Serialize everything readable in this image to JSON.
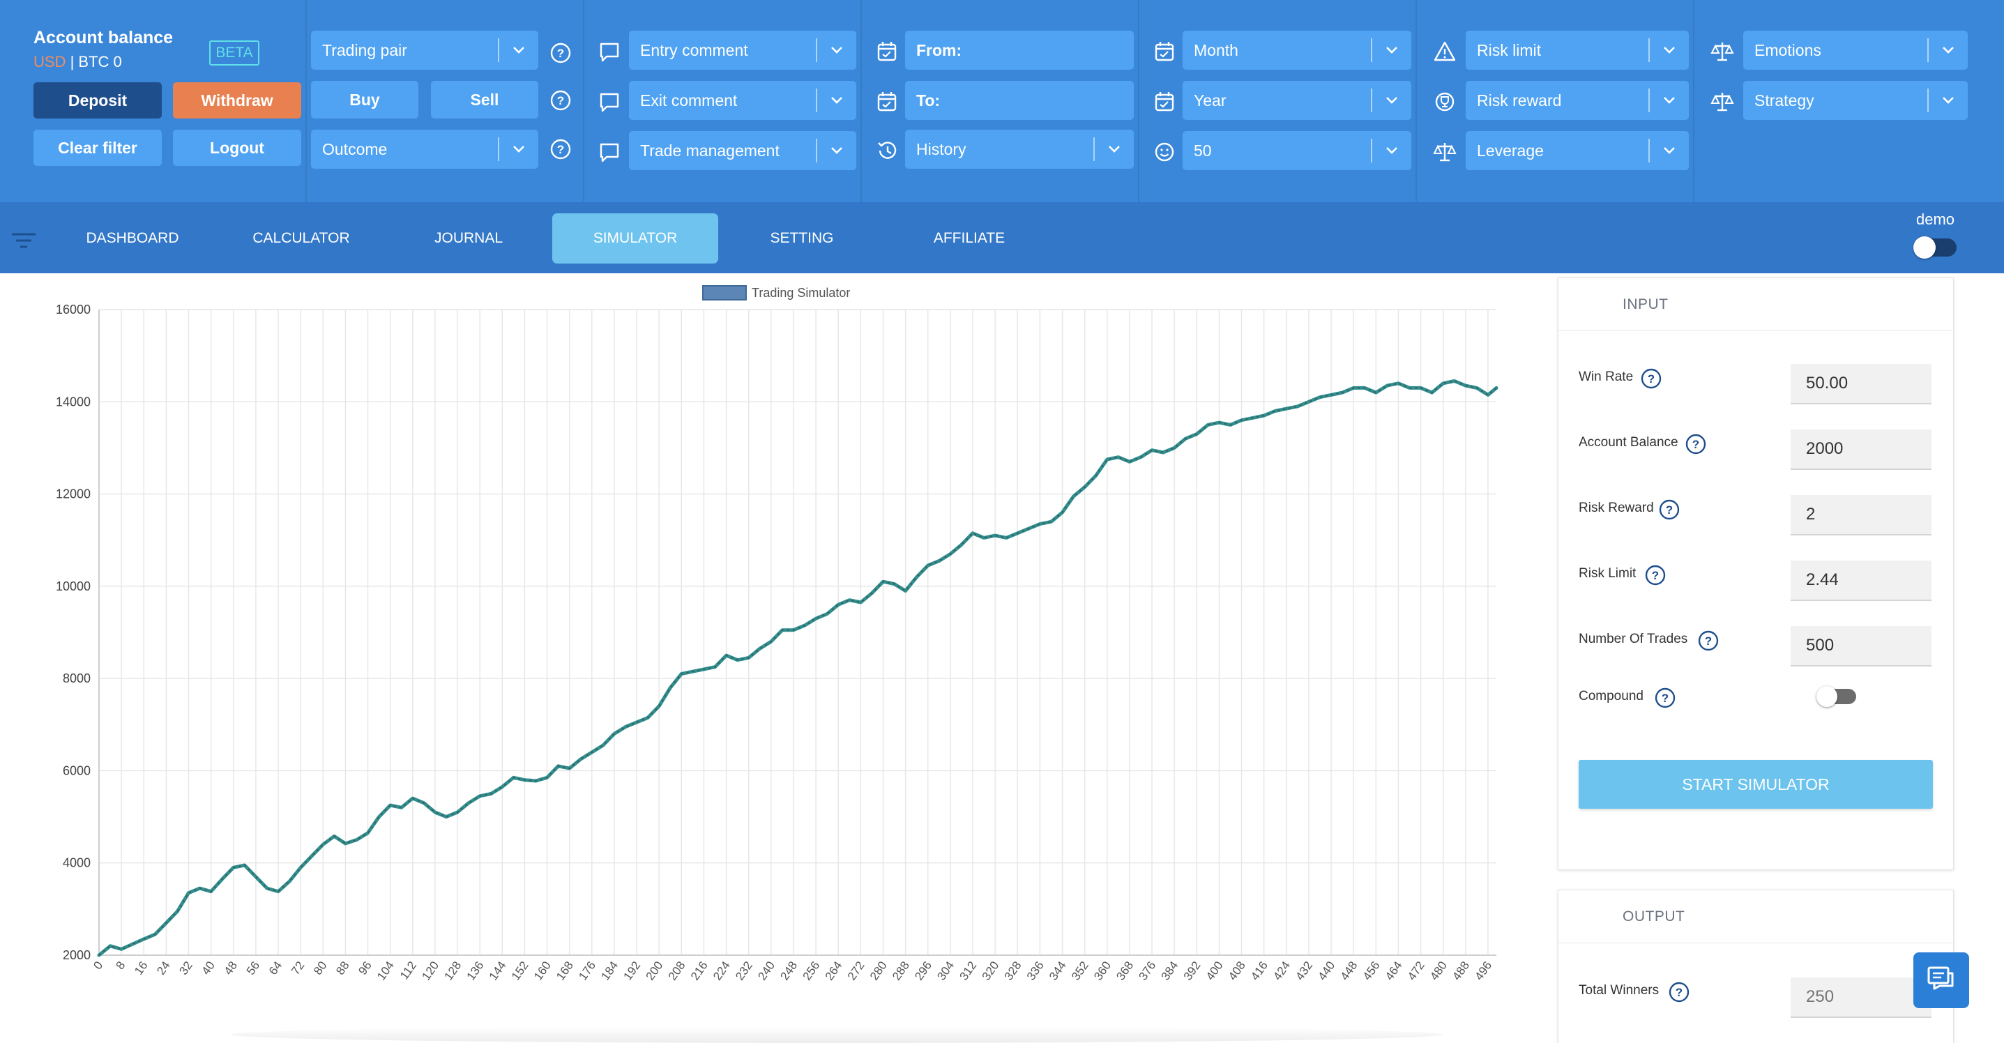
{
  "account": {
    "title": "Account balance",
    "currency_usd": "USD",
    "separator": "|",
    "currency_btc": "BTC",
    "btc_value": "0",
    "beta_badge": "BETA"
  },
  "buttons": {
    "deposit": "Deposit",
    "withdraw": "Withdraw",
    "clear_filter": "Clear filter",
    "logout": "Logout",
    "buy": "Buy",
    "sell": "Sell"
  },
  "filters": {
    "trading_pair": "Trading pair",
    "outcome": "Outcome",
    "entry_comment": "Entry comment",
    "exit_comment": "Exit comment",
    "trade_management": "Trade management",
    "from": "From:",
    "to": "To:",
    "history": "History",
    "month": "Month",
    "year": "Year",
    "count": "50",
    "risk_limit": "Risk limit",
    "risk_reward": "Risk reward",
    "leverage": "Leverage",
    "emotions": "Emotions",
    "strategy": "Strategy"
  },
  "nav": {
    "tabs": [
      {
        "label": "DASHBOARD"
      },
      {
        "label": "CALCULATOR"
      },
      {
        "label": "JOURNAL"
      },
      {
        "label": "SIMULATOR",
        "active": true
      },
      {
        "label": "SETTING"
      },
      {
        "label": "AFFILIATE"
      }
    ],
    "demo_label": "demo",
    "demo_on": false
  },
  "input_panel": {
    "title": "INPUT",
    "fields": [
      {
        "label": "Win Rate",
        "value": "50.00"
      },
      {
        "label": "Account Balance",
        "value": "2000"
      },
      {
        "label": "Risk Reward",
        "value": "2"
      },
      {
        "label": "Risk Limit",
        "value": "2.44"
      },
      {
        "label": "Number Of Trades",
        "value": "500"
      }
    ],
    "compound_label": "Compound",
    "compound_on": false,
    "start_button": "START SIMULATOR"
  },
  "output_panel": {
    "title": "OUTPUT",
    "fields": [
      {
        "label": "Total Winners",
        "placeholder": "250"
      }
    ]
  },
  "colors": {
    "topbar": "#3a87d9",
    "navbar": "#3378c8",
    "control": "#4fa3f2",
    "deposit": "#1e4e8c",
    "withdraw": "#e8804f",
    "active_tab": "#6ec3ef",
    "line": "#2f8f8f"
  },
  "chart_data": {
    "type": "line",
    "legend": "Trading Simulator",
    "legend_position": "top",
    "grid": true,
    "xlim": [
      0,
      499
    ],
    "ylim": [
      2000,
      16000
    ],
    "y_ticks": [
      2000,
      4000,
      6000,
      8000,
      10000,
      12000,
      14000,
      16000
    ],
    "x_tick_step": 8,
    "series": [
      {
        "name": "Trading Simulator",
        "anchors": [
          [
            0,
            2000
          ],
          [
            4,
            2200
          ],
          [
            8,
            2130
          ],
          [
            16,
            2350
          ],
          [
            20,
            2450
          ],
          [
            24,
            2700
          ],
          [
            28,
            2950
          ],
          [
            32,
            3350
          ],
          [
            36,
            3450
          ],
          [
            40,
            3380
          ],
          [
            44,
            3650
          ],
          [
            48,
            3900
          ],
          [
            52,
            3950
          ],
          [
            56,
            3700
          ],
          [
            60,
            3450
          ],
          [
            64,
            3380
          ],
          [
            68,
            3600
          ],
          [
            72,
            3900
          ],
          [
            76,
            4150
          ],
          [
            80,
            4400
          ],
          [
            84,
            4580
          ],
          [
            88,
            4420
          ],
          [
            92,
            4500
          ],
          [
            96,
            4650
          ],
          [
            100,
            5000
          ],
          [
            104,
            5250
          ],
          [
            108,
            5200
          ],
          [
            112,
            5400
          ],
          [
            116,
            5300
          ],
          [
            120,
            5100
          ],
          [
            124,
            5000
          ],
          [
            128,
            5100
          ],
          [
            132,
            5300
          ],
          [
            136,
            5450
          ],
          [
            140,
            5500
          ],
          [
            144,
            5650
          ],
          [
            148,
            5850
          ],
          [
            152,
            5800
          ],
          [
            156,
            5780
          ],
          [
            160,
            5850
          ],
          [
            164,
            6100
          ],
          [
            168,
            6050
          ],
          [
            172,
            6250
          ],
          [
            176,
            6400
          ],
          [
            180,
            6550
          ],
          [
            184,
            6800
          ],
          [
            188,
            6950
          ],
          [
            192,
            7050
          ],
          [
            196,
            7150
          ],
          [
            200,
            7400
          ],
          [
            204,
            7800
          ],
          [
            208,
            8100
          ],
          [
            212,
            8150
          ],
          [
            216,
            8200
          ],
          [
            220,
            8250
          ],
          [
            224,
            8500
          ],
          [
            228,
            8400
          ],
          [
            232,
            8450
          ],
          [
            236,
            8650
          ],
          [
            240,
            8800
          ],
          [
            244,
            9050
          ],
          [
            248,
            9050
          ],
          [
            252,
            9150
          ],
          [
            256,
            9300
          ],
          [
            260,
            9400
          ],
          [
            264,
            9600
          ],
          [
            268,
            9700
          ],
          [
            272,
            9650
          ],
          [
            276,
            9850
          ],
          [
            280,
            10100
          ],
          [
            284,
            10050
          ],
          [
            288,
            9900
          ],
          [
            292,
            10200
          ],
          [
            296,
            10450
          ],
          [
            300,
            10550
          ],
          [
            304,
            10700
          ],
          [
            308,
            10900
          ],
          [
            312,
            11150
          ],
          [
            316,
            11050
          ],
          [
            320,
            11100
          ],
          [
            324,
            11050
          ],
          [
            328,
            11150
          ],
          [
            332,
            11250
          ],
          [
            336,
            11350
          ],
          [
            340,
            11400
          ],
          [
            344,
            11600
          ],
          [
            348,
            11950
          ],
          [
            352,
            12150
          ],
          [
            356,
            12400
          ],
          [
            360,
            12750
          ],
          [
            364,
            12800
          ],
          [
            368,
            12700
          ],
          [
            372,
            12800
          ],
          [
            376,
            12950
          ],
          [
            380,
            12900
          ],
          [
            384,
            13000
          ],
          [
            388,
            13200
          ],
          [
            392,
            13300
          ],
          [
            396,
            13500
          ],
          [
            400,
            13550
          ],
          [
            404,
            13500
          ],
          [
            408,
            13600
          ],
          [
            412,
            13650
          ],
          [
            416,
            13700
          ],
          [
            420,
            13800
          ],
          [
            424,
            13850
          ],
          [
            428,
            13900
          ],
          [
            432,
            14000
          ],
          [
            436,
            14100
          ],
          [
            440,
            14150
          ],
          [
            444,
            14200
          ],
          [
            448,
            14300
          ],
          [
            452,
            14300
          ],
          [
            456,
            14200
          ],
          [
            460,
            14350
          ],
          [
            464,
            14400
          ],
          [
            468,
            14300
          ],
          [
            472,
            14300
          ],
          [
            476,
            14200
          ],
          [
            480,
            14400
          ],
          [
            484,
            14450
          ],
          [
            488,
            14350
          ],
          [
            492,
            14300
          ],
          [
            496,
            14150
          ],
          [
            499,
            14300
          ]
        ]
      }
    ]
  }
}
